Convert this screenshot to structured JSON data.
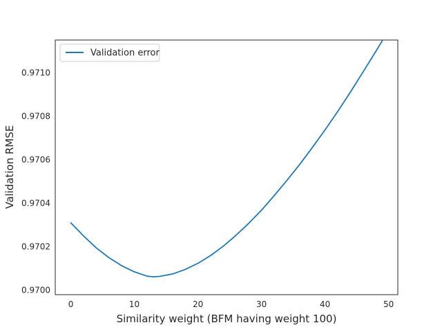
{
  "chart_data": {
    "type": "line",
    "title": "",
    "xlabel": "Similarity weight (BFM having weight 100)",
    "ylabel": "Validation RMSE",
    "xlim": [
      -2.45,
      51.45
    ],
    "ylim": [
      0.96998,
      0.97115
    ],
    "xticks": [
      0,
      10,
      20,
      30,
      40,
      50
    ],
    "xtick_labels": [
      "0",
      "10",
      "20",
      "30",
      "40",
      "50"
    ],
    "yticks": [
      0.97,
      0.9702,
      0.9704,
      0.9706,
      0.9708,
      0.971
    ],
    "ytick_labels": [
      "0.9700",
      "0.9702",
      "0.9704",
      "0.9706",
      "0.9708",
      "0.9710"
    ],
    "grid": false,
    "legend_position": "upper left",
    "line_color": "#1f77b4",
    "series": [
      {
        "name": "Validation error",
        "x": [
          0,
          2,
          4,
          6,
          8,
          10,
          12,
          13,
          14,
          16,
          18,
          20,
          22,
          24,
          26,
          28,
          30,
          32,
          34,
          36,
          38,
          40,
          42,
          44,
          46,
          48,
          49
        ],
        "y": [
          0.97031,
          0.97025,
          0.970195,
          0.97015,
          0.970113,
          0.970085,
          0.970065,
          0.970062,
          0.970064,
          0.970075,
          0.970096,
          0.970124,
          0.97016,
          0.970203,
          0.970253,
          0.970308,
          0.970368,
          0.970435,
          0.970505,
          0.970578,
          0.970656,
          0.970737,
          0.970822,
          0.970911,
          0.971004,
          0.971098,
          0.971146
        ]
      }
    ]
  }
}
